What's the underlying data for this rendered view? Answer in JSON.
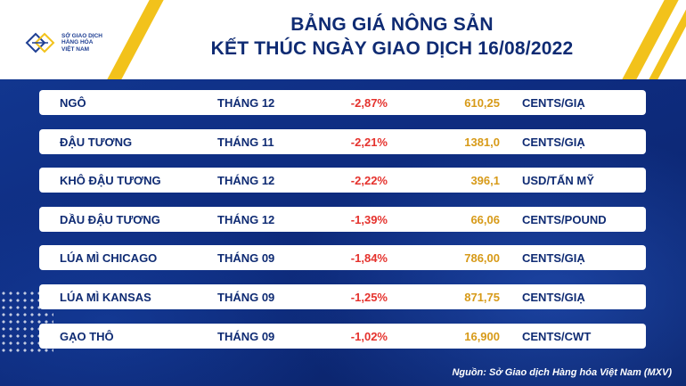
{
  "header": {
    "title_line1": "BẢNG GIÁ NÔNG SẢN",
    "title_line2": "KẾT THÚC NGÀY GIAO DỊCH 16/08/2022",
    "logo_lines": [
      "SỞ GIAO DỊCH",
      "HÀNG HÓA",
      "VIỆT NAM"
    ]
  },
  "rows": [
    {
      "name": "NGÔ",
      "month": "THÁNG 12",
      "change": "-2,87%",
      "price": "610,25",
      "unit": "CENTS/GIẠ"
    },
    {
      "name": "ĐẬU TƯƠNG",
      "month": "THÁNG 11",
      "change": "-2,21%",
      "price": "1381,0",
      "unit": "CENTS/GIẠ"
    },
    {
      "name": "KHÔ ĐẬU TƯƠNG",
      "month": "THÁNG 12",
      "change": "-2,22%",
      "price": "396,1",
      "unit": "USD/TẤN MỸ"
    },
    {
      "name": "DẦU ĐẬU TƯƠNG",
      "month": "THÁNG 12",
      "change": "-1,39%",
      "price": "66,06",
      "unit": "CENTS/POUND"
    },
    {
      "name": "LÚA MÌ CHICAGO",
      "month": "THÁNG 09",
      "change": "-1,84%",
      "price": "786,00",
      "unit": "CENTS/GIẠ"
    },
    {
      "name": "LÚA MÌ KANSAS",
      "month": "THÁNG 09",
      "change": "-1,25%",
      "price": "871,75",
      "unit": "CENTS/GIẠ"
    },
    {
      "name": "GẠO THÔ",
      "month": "THÁNG 09",
      "change": "-1,02%",
      "price": "16,900",
      "unit": "CENTS/CWT"
    }
  ],
  "source": "Nguồn: Sở Giao dịch Hàng hóa Việt Nam (MXV)",
  "colors": {
    "background": "#0d2a78",
    "accent_yellow": "#f2c21b",
    "title_navy": "#0f2b73",
    "change_red": "#e5322d",
    "price_gold": "#d79a18"
  }
}
